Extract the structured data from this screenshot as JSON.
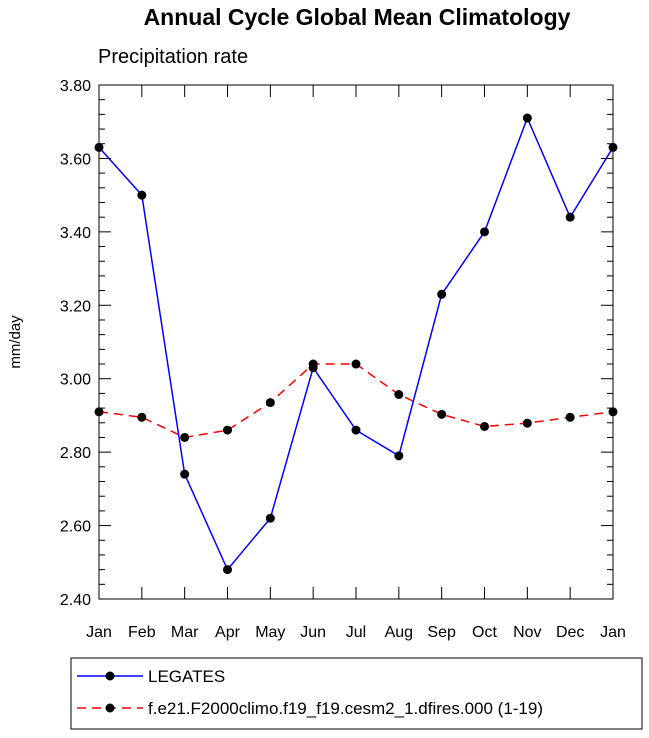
{
  "chart_data": {
    "type": "line",
    "title": "Annual Cycle Global Mean Climatology",
    "subtitle": "Precipitation rate",
    "xlabel": "",
    "ylabel": "mm/day",
    "ylim": [
      2.4,
      3.8
    ],
    "yticks": [
      2.4,
      2.6,
      2.8,
      3.0,
      3.2,
      3.4,
      3.6,
      3.8
    ],
    "ytick_labels": [
      "2.40",
      "2.60",
      "2.80",
      "3.00",
      "3.20",
      "3.40",
      "3.60",
      "3.80"
    ],
    "categories": [
      "Jan",
      "Feb",
      "Mar",
      "Apr",
      "May",
      "Jun",
      "Jul",
      "Aug",
      "Sep",
      "Oct",
      "Nov",
      "Dec",
      "Jan"
    ],
    "grid": false,
    "legend_position": "bottom",
    "series": [
      {
        "name": "LEGATES",
        "color": "#0000ff",
        "dash": "solid",
        "marker": "circle",
        "values": [
          3.63,
          3.5,
          2.74,
          2.48,
          2.62,
          3.03,
          2.86,
          2.79,
          3.23,
          3.4,
          3.71,
          3.44,
          3.63
        ]
      },
      {
        "name": "f.e21.F2000climo.f19_f19.cesm2_1.dfires.000 (1-19)",
        "color": "#ff0000",
        "dash": "dashed",
        "marker": "circle",
        "values": [
          2.91,
          2.895,
          2.84,
          2.86,
          2.935,
          3.04,
          3.04,
          2.957,
          2.903,
          2.87,
          2.879,
          2.895,
          2.91
        ]
      }
    ]
  }
}
